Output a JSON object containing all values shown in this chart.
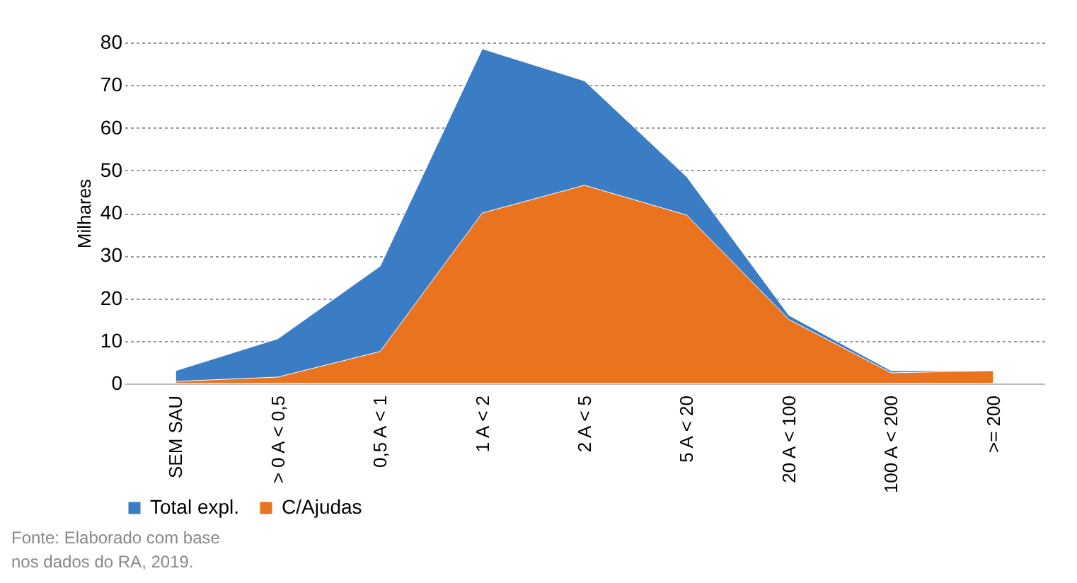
{
  "chart_data": {
    "type": "area",
    "ylabel": "Milhares",
    "categories": [
      "SEM SAU",
      "> 0 A < 0,5",
      "0,5 A < 1",
      "1 A < 2",
      "2 A < 5",
      "5 A < 20",
      "20 A < 100",
      "100 A < 200",
      ">= 200"
    ],
    "series": [
      {
        "name": "Total expl.",
        "color": "#3b7dc4",
        "values": [
          3,
          10.5,
          27.5,
          78.5,
          71,
          48.5,
          16,
          3,
          3
        ]
      },
      {
        "name": "C/Ajudas",
        "color": "#ea7320",
        "values": [
          0.5,
          1.5,
          7.5,
          40,
          46.5,
          39.5,
          15,
          2.5,
          3
        ]
      }
    ],
    "ylim": [
      0,
      80
    ],
    "yticks": [
      0,
      10,
      20,
      30,
      40,
      50,
      60,
      70,
      80
    ],
    "grid": "y",
    "legend": "bottom",
    "annotations": [
      "Fonte: Elaborado com base nos dados do RA, 2019."
    ]
  }
}
